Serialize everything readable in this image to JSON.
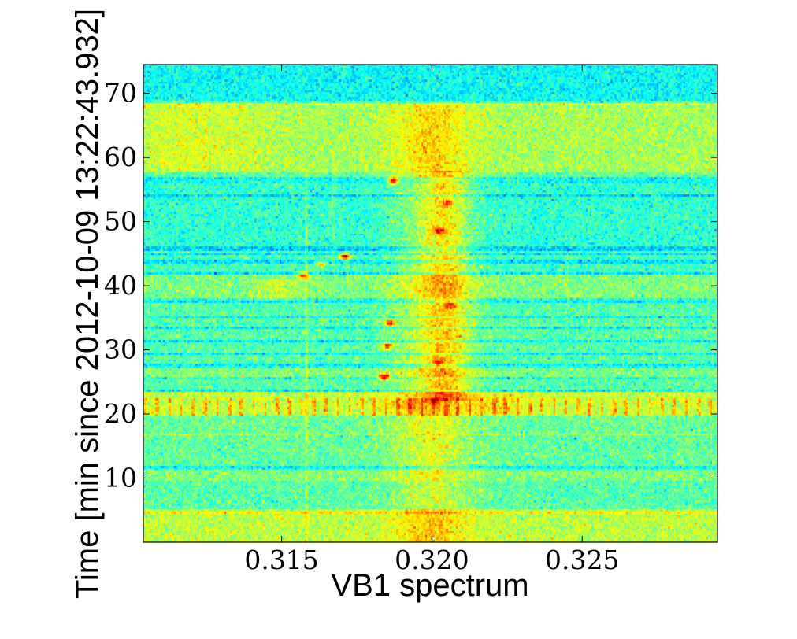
{
  "chart_data": {
    "type": "heatmap",
    "title": "",
    "xlabel": "VB1 spectrum",
    "ylabel": "Time [min since 2012-10-09 13:22:43.932]",
    "xlim": [
      0.3104,
      0.3295
    ],
    "ylim": [
      0,
      74.5
    ],
    "x_ticks": [
      0.315,
      0.32,
      0.325
    ],
    "x_tick_labels": [
      "0.315",
      "0.320",
      "0.325"
    ],
    "y_ticks": [
      10,
      20,
      30,
      40,
      50,
      60,
      70
    ],
    "y_tick_labels": [
      "10",
      "20",
      "30",
      "40",
      "50",
      "60",
      "70"
    ],
    "grid": false,
    "legend": "none",
    "colormap": "jet",
    "colorbar": false,
    "colormap_stops": [
      "#00007f",
      "#0000ff",
      "#00ffff",
      "#7fff7f",
      "#ffff00",
      "#ff7f00",
      "#ff0000",
      "#7f0000"
    ],
    "value_range": [
      0,
      1
    ],
    "n_time_bins": 220,
    "n_freq_bins": 300,
    "background_level": 0.47,
    "time_band_levels": [
      {
        "t": [
          0.0,
          5.0
        ],
        "level": 0.56
      },
      {
        "t": [
          5.0,
          9.5
        ],
        "level": 0.46
      },
      {
        "t": [
          9.5,
          11.5
        ],
        "level": 0.5
      },
      {
        "t": [
          11.5,
          16.5
        ],
        "level": 0.47
      },
      {
        "t": [
          16.5,
          19.5
        ],
        "level": 0.48
      },
      {
        "t": [
          19.5,
          23.5
        ],
        "level": 0.57
      },
      {
        "t": [
          23.5,
          25.5
        ],
        "level": 0.46
      },
      {
        "t": [
          25.5,
          27.5
        ],
        "level": 0.5
      },
      {
        "t": [
          27.5,
          37.5
        ],
        "level": 0.46
      },
      {
        "t": [
          37.5,
          41.5
        ],
        "level": 0.5
      },
      {
        "t": [
          41.5,
          45.5
        ],
        "level": 0.44
      },
      {
        "t": [
          45.5,
          56.0
        ],
        "level": 0.42
      },
      {
        "t": [
          56.0,
          58.0
        ],
        "level": 0.47
      },
      {
        "t": [
          58.0,
          68.5
        ],
        "level": 0.54
      },
      {
        "t": [
          68.5,
          74.5
        ],
        "level": 0.38
      }
    ],
    "dark_lines": [
      11.5,
      23.5,
      25.7,
      27.4,
      29.4,
      31.4,
      33.3,
      35.0,
      37.6,
      41.8,
      43.7,
      44.8,
      45.7,
      53.9,
      56.2,
      56.8
    ],
    "bright_lines": [
      4.6,
      16.8,
      57.8,
      68.4
    ],
    "broad_features": [
      {
        "f_center": 0.32,
        "f_width": 0.0009,
        "t_range": [
          0,
          68
        ],
        "amp": 0.12
      },
      {
        "f_center": 0.3205,
        "f_width": 0.0005,
        "t_range": [
          22,
          58
        ],
        "amp": 0.12
      },
      {
        "f_center": 0.3148,
        "f_width": 0.0005,
        "t_range": [
          37.5,
          41
        ],
        "amp": 0.08
      },
      {
        "f_center": 0.3222,
        "f_width": 0.0007,
        "t_range": [
          20,
          23
        ],
        "amp": 0.08
      },
      {
        "f_center": 0.3191,
        "f_width": 0.0006,
        "t_range": [
          20.5,
          22.5
        ],
        "amp": 0.06
      },
      {
        "f_center": 0.3122,
        "f_width": 0.0016,
        "t_range": [
          58,
          68
        ],
        "amp": 0.05
      }
    ],
    "narrow_lines": [
      {
        "f": 0.3158,
        "t_range": [
          0,
          58
        ],
        "amp": 0.06
      },
      {
        "f": 0.3167,
        "t_range": [
          42,
          58
        ],
        "amp": 0.05
      },
      {
        "f": 0.3245,
        "t_range": [
          37,
          45
        ],
        "amp": 0.05
      }
    ],
    "hot_spots": [
      {
        "f": 0.3187,
        "t": 56.3,
        "amp": 0.5
      },
      {
        "f": 0.3171,
        "t": 44.5,
        "amp": 0.45
      },
      {
        "f": 0.3163,
        "t": 43.4,
        "amp": 0.33
      },
      {
        "f": 0.3157,
        "t": 41.6,
        "amp": 0.33
      },
      {
        "f": 0.3186,
        "t": 34.1,
        "amp": 0.38
      },
      {
        "f": 0.3185,
        "t": 30.6,
        "amp": 0.38
      },
      {
        "f": 0.3184,
        "t": 25.7,
        "amp": 0.5
      },
      {
        "f": 0.3202,
        "t": 48.5,
        "amp": 0.25
      },
      {
        "f": 0.3205,
        "t": 52.8,
        "amp": 0.2
      },
      {
        "f": 0.3206,
        "t": 37.0,
        "amp": 0.2
      },
      {
        "f": 0.3202,
        "t": 28.0,
        "amp": 0.22
      },
      {
        "f": 0.3201,
        "t": 22.0,
        "amp": 0.18
      }
    ],
    "comb_row": {
      "t_range": [
        19.5,
        22.5
      ],
      "spacing": 0.0004,
      "amp": 0.12
    }
  }
}
